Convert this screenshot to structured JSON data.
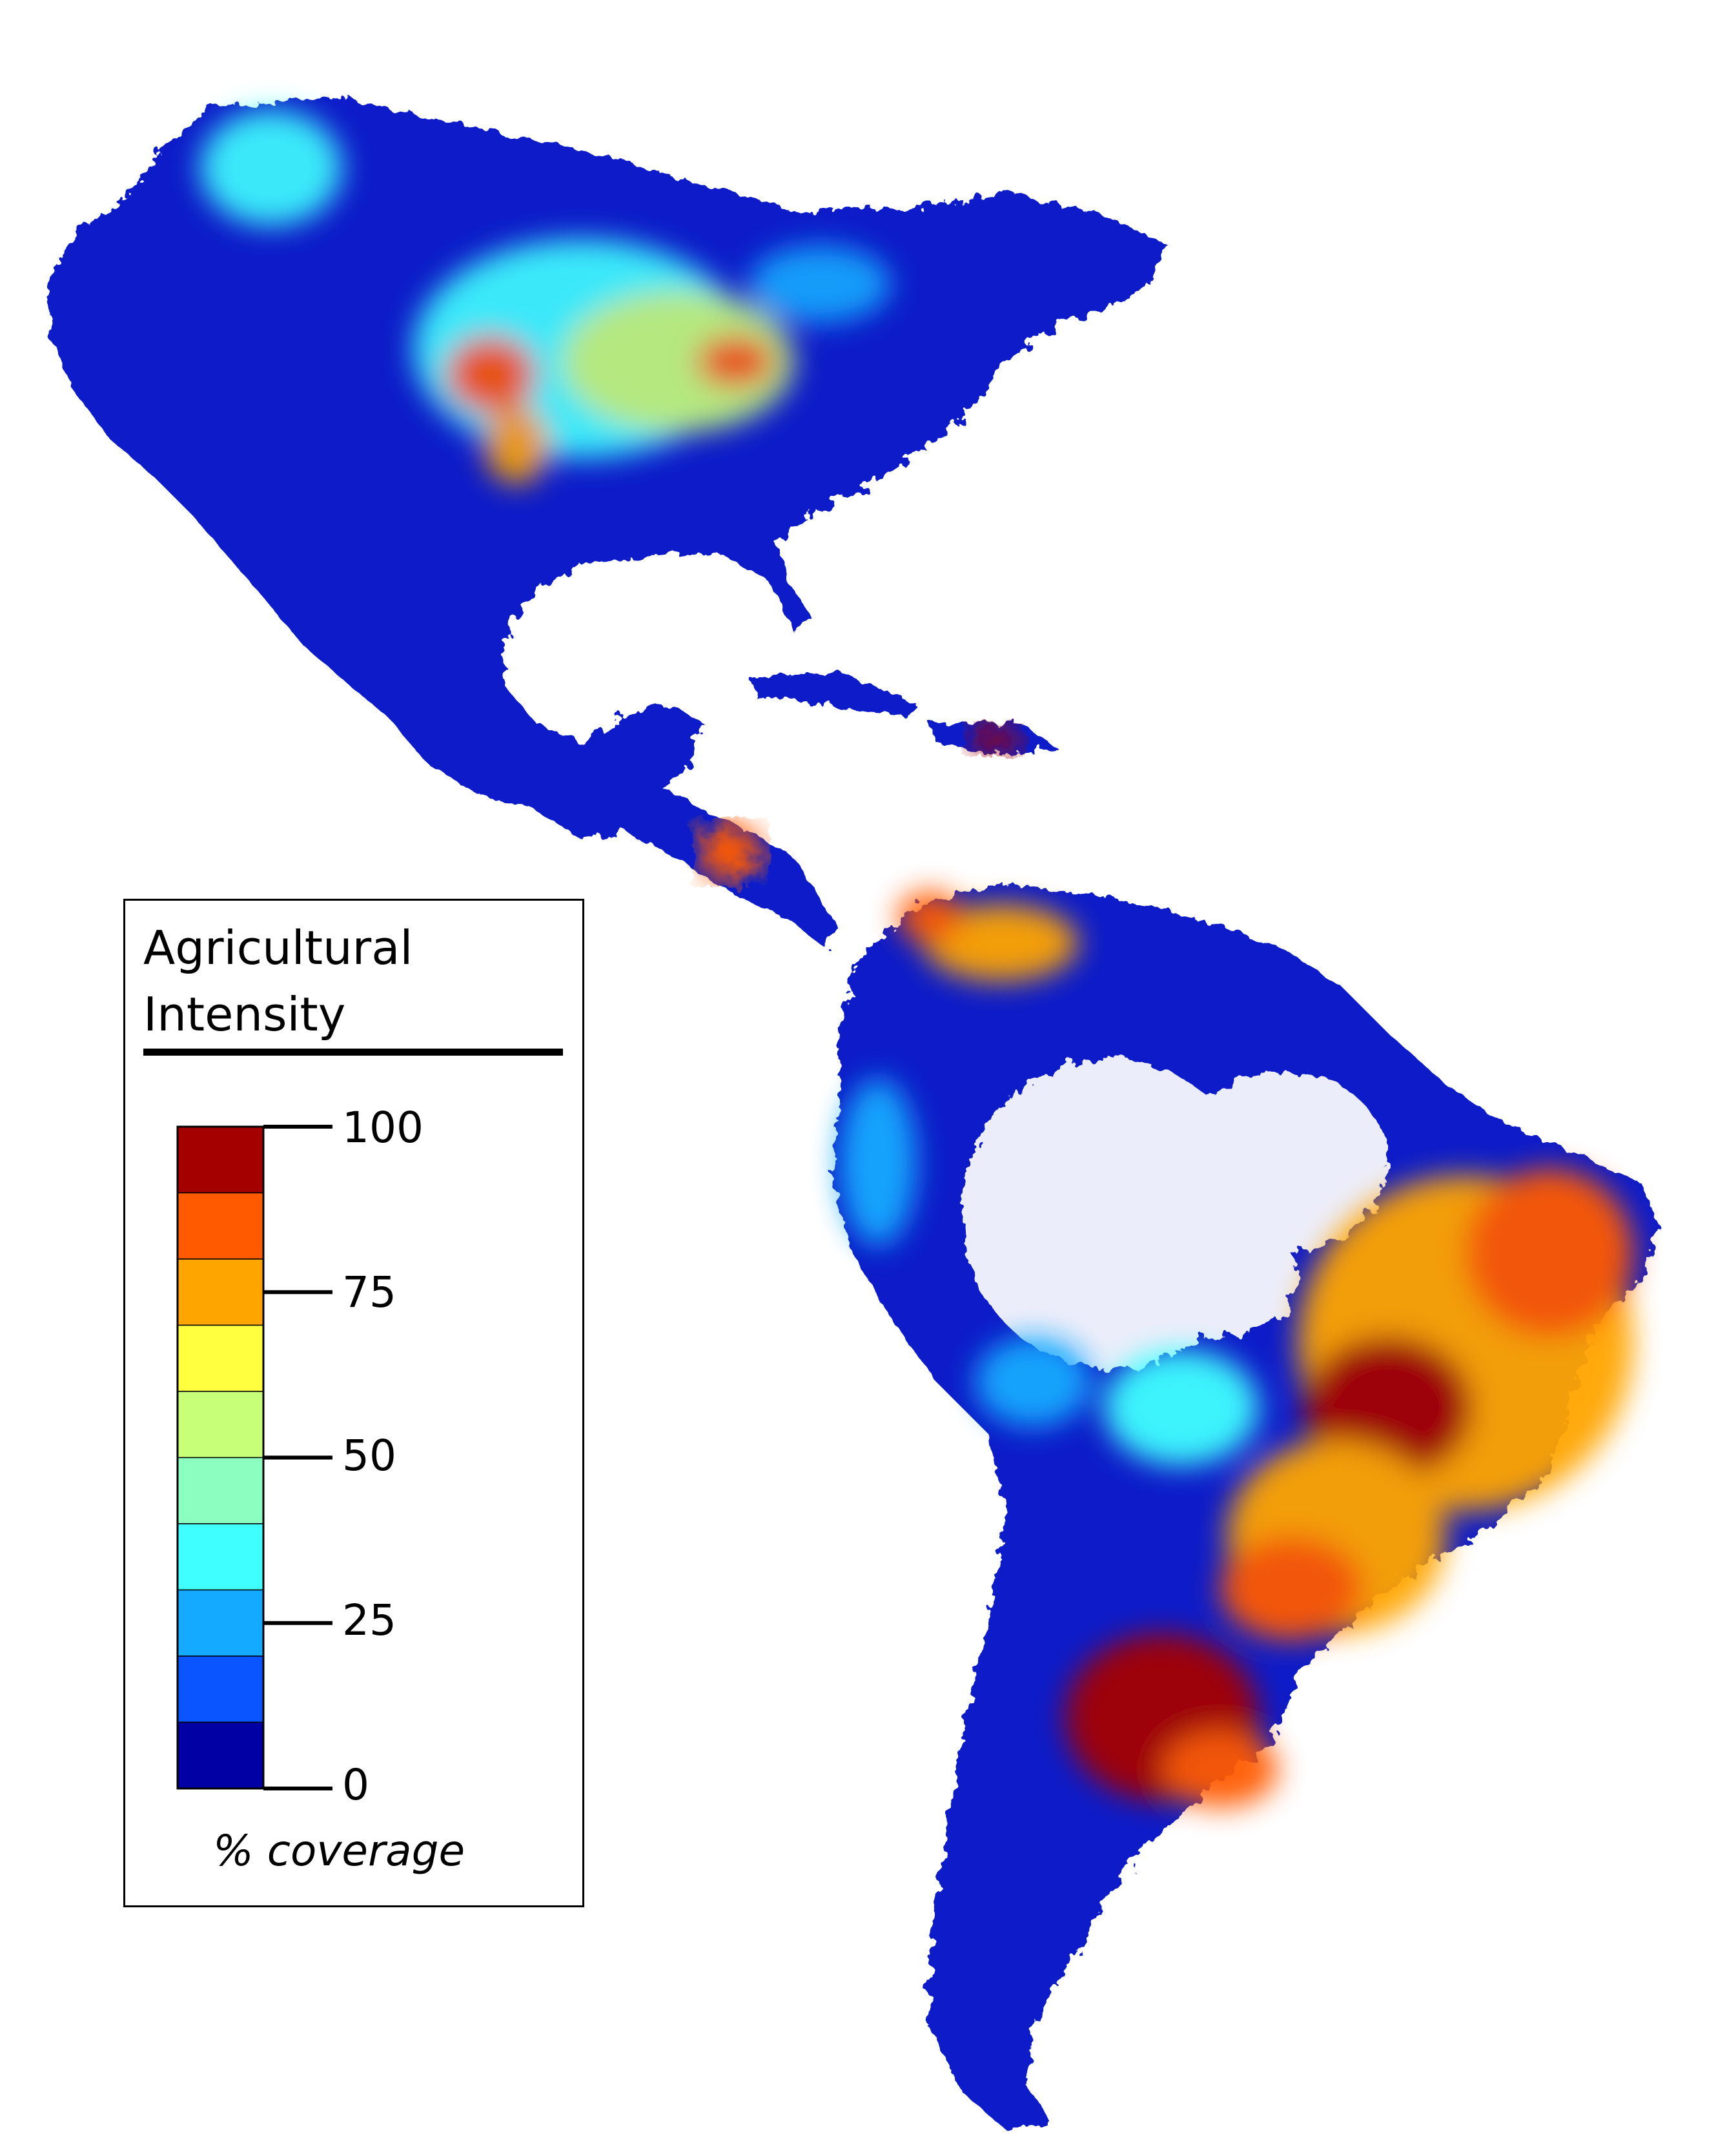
{
  "legend": {
    "title_line1": "Agricultural",
    "title_line2": "Intensity",
    "unit": "% coverage",
    "ticks": [
      "100",
      "75",
      "50",
      "25",
      "0"
    ],
    "colors": [
      "#a50000",
      "#ff5a00",
      "#ffa500",
      "#ffff40",
      "#c8ff78",
      "#8cffc0",
      "#40ffff",
      "#14aaff",
      "#0a55ff",
      "#0000a5"
    ]
  },
  "map": {
    "region": "Americas",
    "background": "#ffffff",
    "low_intensity_color": "#0a1fc8"
  }
}
